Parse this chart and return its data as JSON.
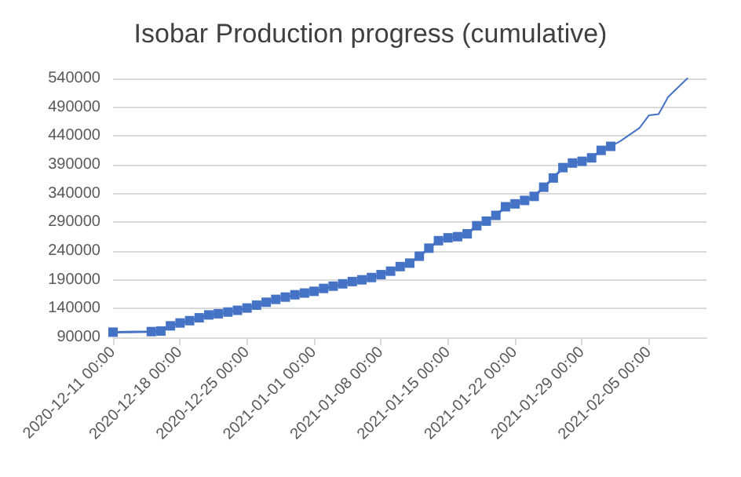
{
  "chart_data": {
    "type": "line",
    "title": "Isobar Production progress (cumulative)",
    "xlim": [
      "2020-12-11",
      "2021-02-11"
    ],
    "xticks": [
      {
        "value": "2020-12-11",
        "label": "2020-12-11 00:00"
      },
      {
        "value": "2020-12-18",
        "label": "2020-12-18 00:00"
      },
      {
        "value": "2020-12-25",
        "label": "2020-12-25 00:00"
      },
      {
        "value": "2021-01-01",
        "label": "2021-01-01 00:00"
      },
      {
        "value": "2021-01-08",
        "label": "2021-01-08 00:00"
      },
      {
        "value": "2021-01-15",
        "label": "2021-01-15 00:00"
      },
      {
        "value": "2021-01-22",
        "label": "2021-01-22 00:00"
      },
      {
        "value": "2021-01-29",
        "label": "2021-01-29 00:00"
      },
      {
        "value": "2021-02-05",
        "label": "2021-02-05 00:00"
      }
    ],
    "ylim": [
      90000,
      540000
    ],
    "yticks": [
      90000,
      140000,
      190000,
      240000,
      290000,
      340000,
      390000,
      440000,
      490000,
      540000
    ],
    "grid": "y",
    "marker": "square",
    "series": [
      {
        "color": "#4472c4",
        "x": [
          "2020-12-11",
          "2020-12-15",
          "2020-12-16",
          "2020-12-17",
          "2020-12-18",
          "2020-12-19",
          "2020-12-20",
          "2020-12-21",
          "2020-12-22",
          "2020-12-23",
          "2020-12-24",
          "2020-12-25",
          "2020-12-26",
          "2020-12-27",
          "2020-12-28",
          "2020-12-29",
          "2020-12-30",
          "2020-12-31",
          "2021-01-01",
          "2021-01-02",
          "2021-01-03",
          "2021-01-04",
          "2021-01-05",
          "2021-01-06",
          "2021-01-07",
          "2021-01-08",
          "2021-01-09",
          "2021-01-10",
          "2021-01-11",
          "2021-01-12",
          "2021-01-13",
          "2021-01-14",
          "2021-01-15",
          "2021-01-16",
          "2021-01-17",
          "2021-01-18",
          "2021-01-19",
          "2021-01-20",
          "2021-01-21",
          "2021-01-22",
          "2021-01-23",
          "2021-01-24",
          "2021-01-25",
          "2021-01-26",
          "2021-01-27",
          "2021-01-28",
          "2021-01-29",
          "2021-01-30",
          "2021-01-31",
          "2021-02-01"
        ],
        "values": [
          99000,
          100000,
          101000,
          110000,
          115000,
          119000,
          124000,
          129000,
          131000,
          134000,
          137000,
          141000,
          146000,
          151000,
          156000,
          160000,
          164000,
          167000,
          170000,
          175000,
          179000,
          183000,
          187000,
          190000,
          194000,
          199000,
          205000,
          213000,
          219000,
          231000,
          245000,
          258000,
          263000,
          265000,
          270000,
          284000,
          292000,
          302000,
          317000,
          322000,
          328000,
          335000,
          351000,
          367000,
          385000,
          393000,
          396000,
          402000,
          415000,
          422000
        ]
      },
      {
        "color": "#4472c4",
        "marker": "none",
        "x": [
          "2021-02-01",
          "2021-02-02",
          "2021-02-04",
          "2021-02-05",
          "2021-02-06",
          "2021-02-07",
          "2021-02-09"
        ],
        "values": [
          422000,
          431000,
          454000,
          476000,
          478000,
          508000,
          540000
        ]
      }
    ]
  }
}
